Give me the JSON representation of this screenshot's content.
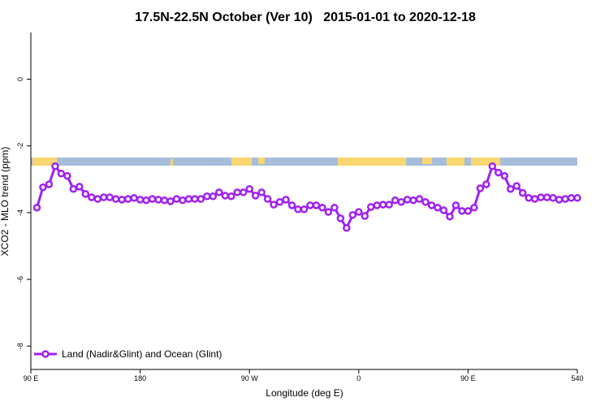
{
  "chart_data": {
    "type": "line",
    "title": "17.5N-22.5N October (Ver 10)   2015-01-01 to 2020-12-18",
    "x_label": "Longitude (deg E)",
    "y_label": "XCO2 - MLO trend (ppm)",
    "x": [
      95,
      100,
      105,
      110,
      115,
      120,
      125,
      130,
      135,
      140,
      145,
      150,
      155,
      160,
      165,
      170,
      175,
      180,
      185,
      190,
      195,
      200,
      205,
      210,
      215,
      220,
      225,
      230,
      235,
      240,
      245,
      250,
      255,
      260,
      265,
      270,
      275,
      280,
      285,
      290,
      295,
      300,
      305,
      310,
      315,
      320,
      325,
      330,
      335,
      340,
      345,
      350,
      355,
      360,
      365,
      370,
      375,
      380,
      385,
      390,
      395,
      400,
      405,
      410,
      415,
      420,
      425,
      430,
      435,
      440,
      445,
      450,
      455,
      460,
      465,
      470,
      475,
      480,
      485,
      490,
      495,
      500,
      505,
      510,
      515,
      520,
      525,
      530,
      535,
      540
    ],
    "series": [
      {
        "name": "Land (Nadir&Glint) and Ocean (Glint)",
        "color": "#a020f0",
        "values": [
          -3.85,
          -3.24,
          -3.15,
          -2.61,
          -2.83,
          -2.9,
          -3.29,
          -3.22,
          -3.44,
          -3.54,
          -3.59,
          -3.54,
          -3.54,
          -3.59,
          -3.61,
          -3.59,
          -3.56,
          -3.61,
          -3.63,
          -3.59,
          -3.61,
          -3.63,
          -3.66,
          -3.59,
          -3.63,
          -3.59,
          -3.59,
          -3.59,
          -3.51,
          -3.51,
          -3.39,
          -3.49,
          -3.51,
          -3.39,
          -3.39,
          -3.29,
          -3.49,
          -3.39,
          -3.59,
          -3.76,
          -3.68,
          -3.61,
          -3.78,
          -3.9,
          -3.9,
          -3.78,
          -3.78,
          -3.85,
          -3.98,
          -3.85,
          -4.17,
          -4.46,
          -4.07,
          -3.98,
          -4.1,
          -3.83,
          -3.78,
          -3.76,
          -3.76,
          -3.63,
          -3.68,
          -3.61,
          -3.63,
          -3.59,
          -3.68,
          -3.78,
          -3.85,
          -3.93,
          -4.12,
          -3.78,
          -3.95,
          -3.95,
          -3.85,
          -3.27,
          -3.15,
          -2.61,
          -2.8,
          -2.9,
          -3.29,
          -3.2,
          -3.41,
          -3.56,
          -3.59,
          -3.54,
          -3.54,
          -3.56,
          -3.61,
          -3.59,
          -3.56,
          -3.56
        ]
      }
    ],
    "xlim": [
      90,
      540
    ],
    "xticks": [
      {
        "value": 90,
        "label": "90 E"
      },
      180,
      {
        "value": 270,
        "label": "90 W"
      },
      {
        "value": 360,
        "label": "0"
      },
      {
        "value": 450,
        "label": "90 E"
      },
      540
    ],
    "ylim": [
      -8.7,
      1.4
    ],
    "yticks": [
      0,
      -2,
      -4,
      -6,
      -8
    ],
    "legend": "bottom-left"
  }
}
